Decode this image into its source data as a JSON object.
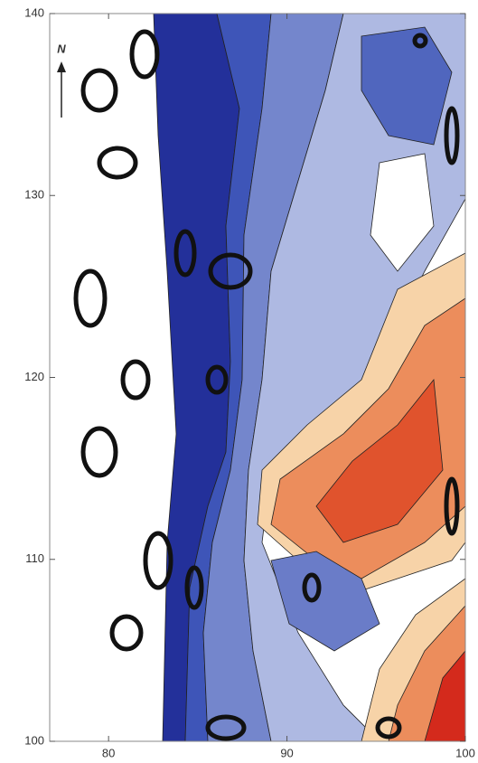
{
  "chart_data": {
    "type": "contour",
    "annotations": [
      "N"
    ],
    "xlim": [
      76.7,
      100
    ],
    "xticks": [
      80,
      90,
      100
    ],
    "ylim": [
      100,
      140
    ],
    "yticks": [
      100,
      110,
      120,
      130,
      140
    ]
  }
}
